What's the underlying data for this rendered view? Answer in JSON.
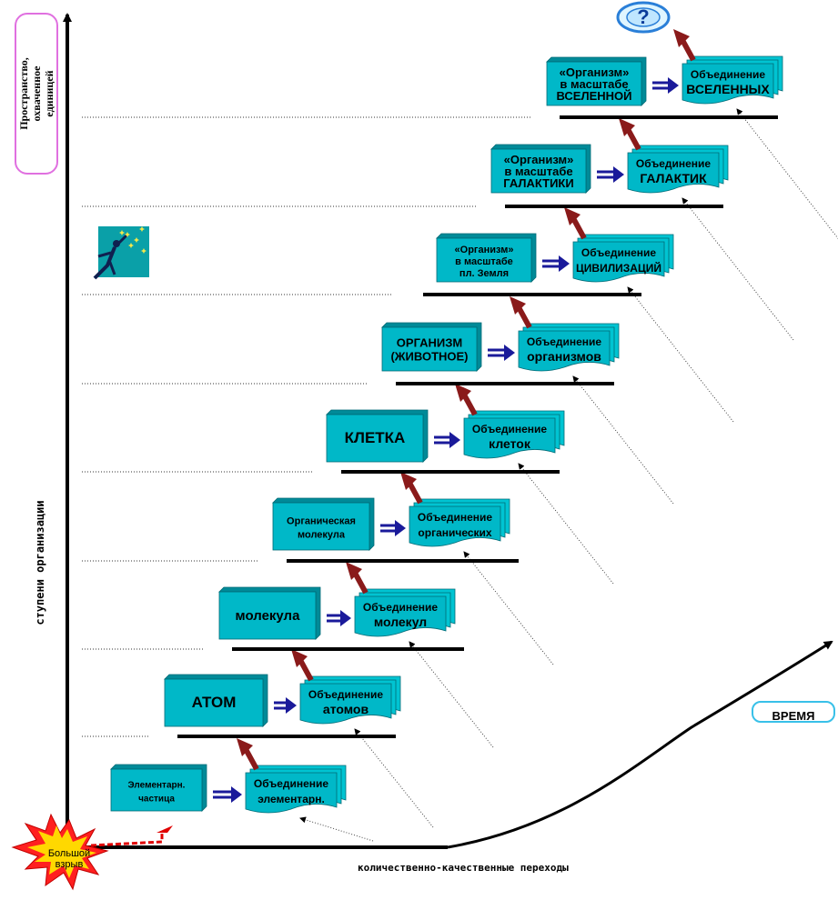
{
  "y_axis_top_label": "Пространство, охваченное единицей",
  "y_axis_label": "ступени организации",
  "x_axis_label": "количественно-качественные переходы",
  "time_label": "ВРЕМЯ",
  "bang_label": "Большой взрыв",
  "question_mark": "?",
  "levels": [
    {
      "left": [
        "Элементарн.",
        "частица"
      ],
      "right": [
        "Объединение",
        "элементарн."
      ]
    },
    {
      "left": [
        "АТОМ"
      ],
      "right": [
        "Объединение",
        "атомов"
      ]
    },
    {
      "left": [
        "молекула"
      ],
      "right": [
        "Объединение",
        "молекул"
      ]
    },
    {
      "left": [
        "Органическая",
        "молекула"
      ],
      "right": [
        "Объединение",
        "органических"
      ]
    },
    {
      "left": [
        "КЛЕТКА"
      ],
      "right": [
        "Объединение",
        "клеток"
      ]
    },
    {
      "left": [
        "ОРГАНИЗМ",
        "(ЖИВОТНОЕ)"
      ],
      "right": [
        "Объединение",
        "организмов"
      ]
    },
    {
      "left": [
        "«Организм»",
        "в масштабе",
        "пл. Земля"
      ],
      "right": [
        "Объединение",
        "ЦИВИЛИЗАЦИЙ"
      ]
    },
    {
      "left": [
        "«Организм»",
        "в масштабе",
        "ГАЛАКТИКИ"
      ],
      "right": [
        "Объединение",
        "ГАЛАКТИК"
      ]
    },
    {
      "left": [
        "«Организм»",
        "в масштабе",
        "ВСЕЛЕННОЙ"
      ],
      "right": [
        "Объединение",
        "ВСЕЛЕННЫХ"
      ]
    }
  ],
  "colors": {
    "box_fill": "#00b8c8",
    "box_shadow": "#008a98",
    "arrow_blue": "#1a1a9a",
    "arrow_brown": "#8a1a1a",
    "start_arrow": "#e00000",
    "pill_border": "#e070e0",
    "time_border": "#38c0e8",
    "bang_fill": "#ff2020",
    "bang_inner": "#ffd800",
    "star_bg": "#0aa0a8",
    "star_fill": "#f4e84a"
  },
  "icons": [
    "explosion-icon",
    "question-icon",
    "star-reacher-icon"
  ]
}
